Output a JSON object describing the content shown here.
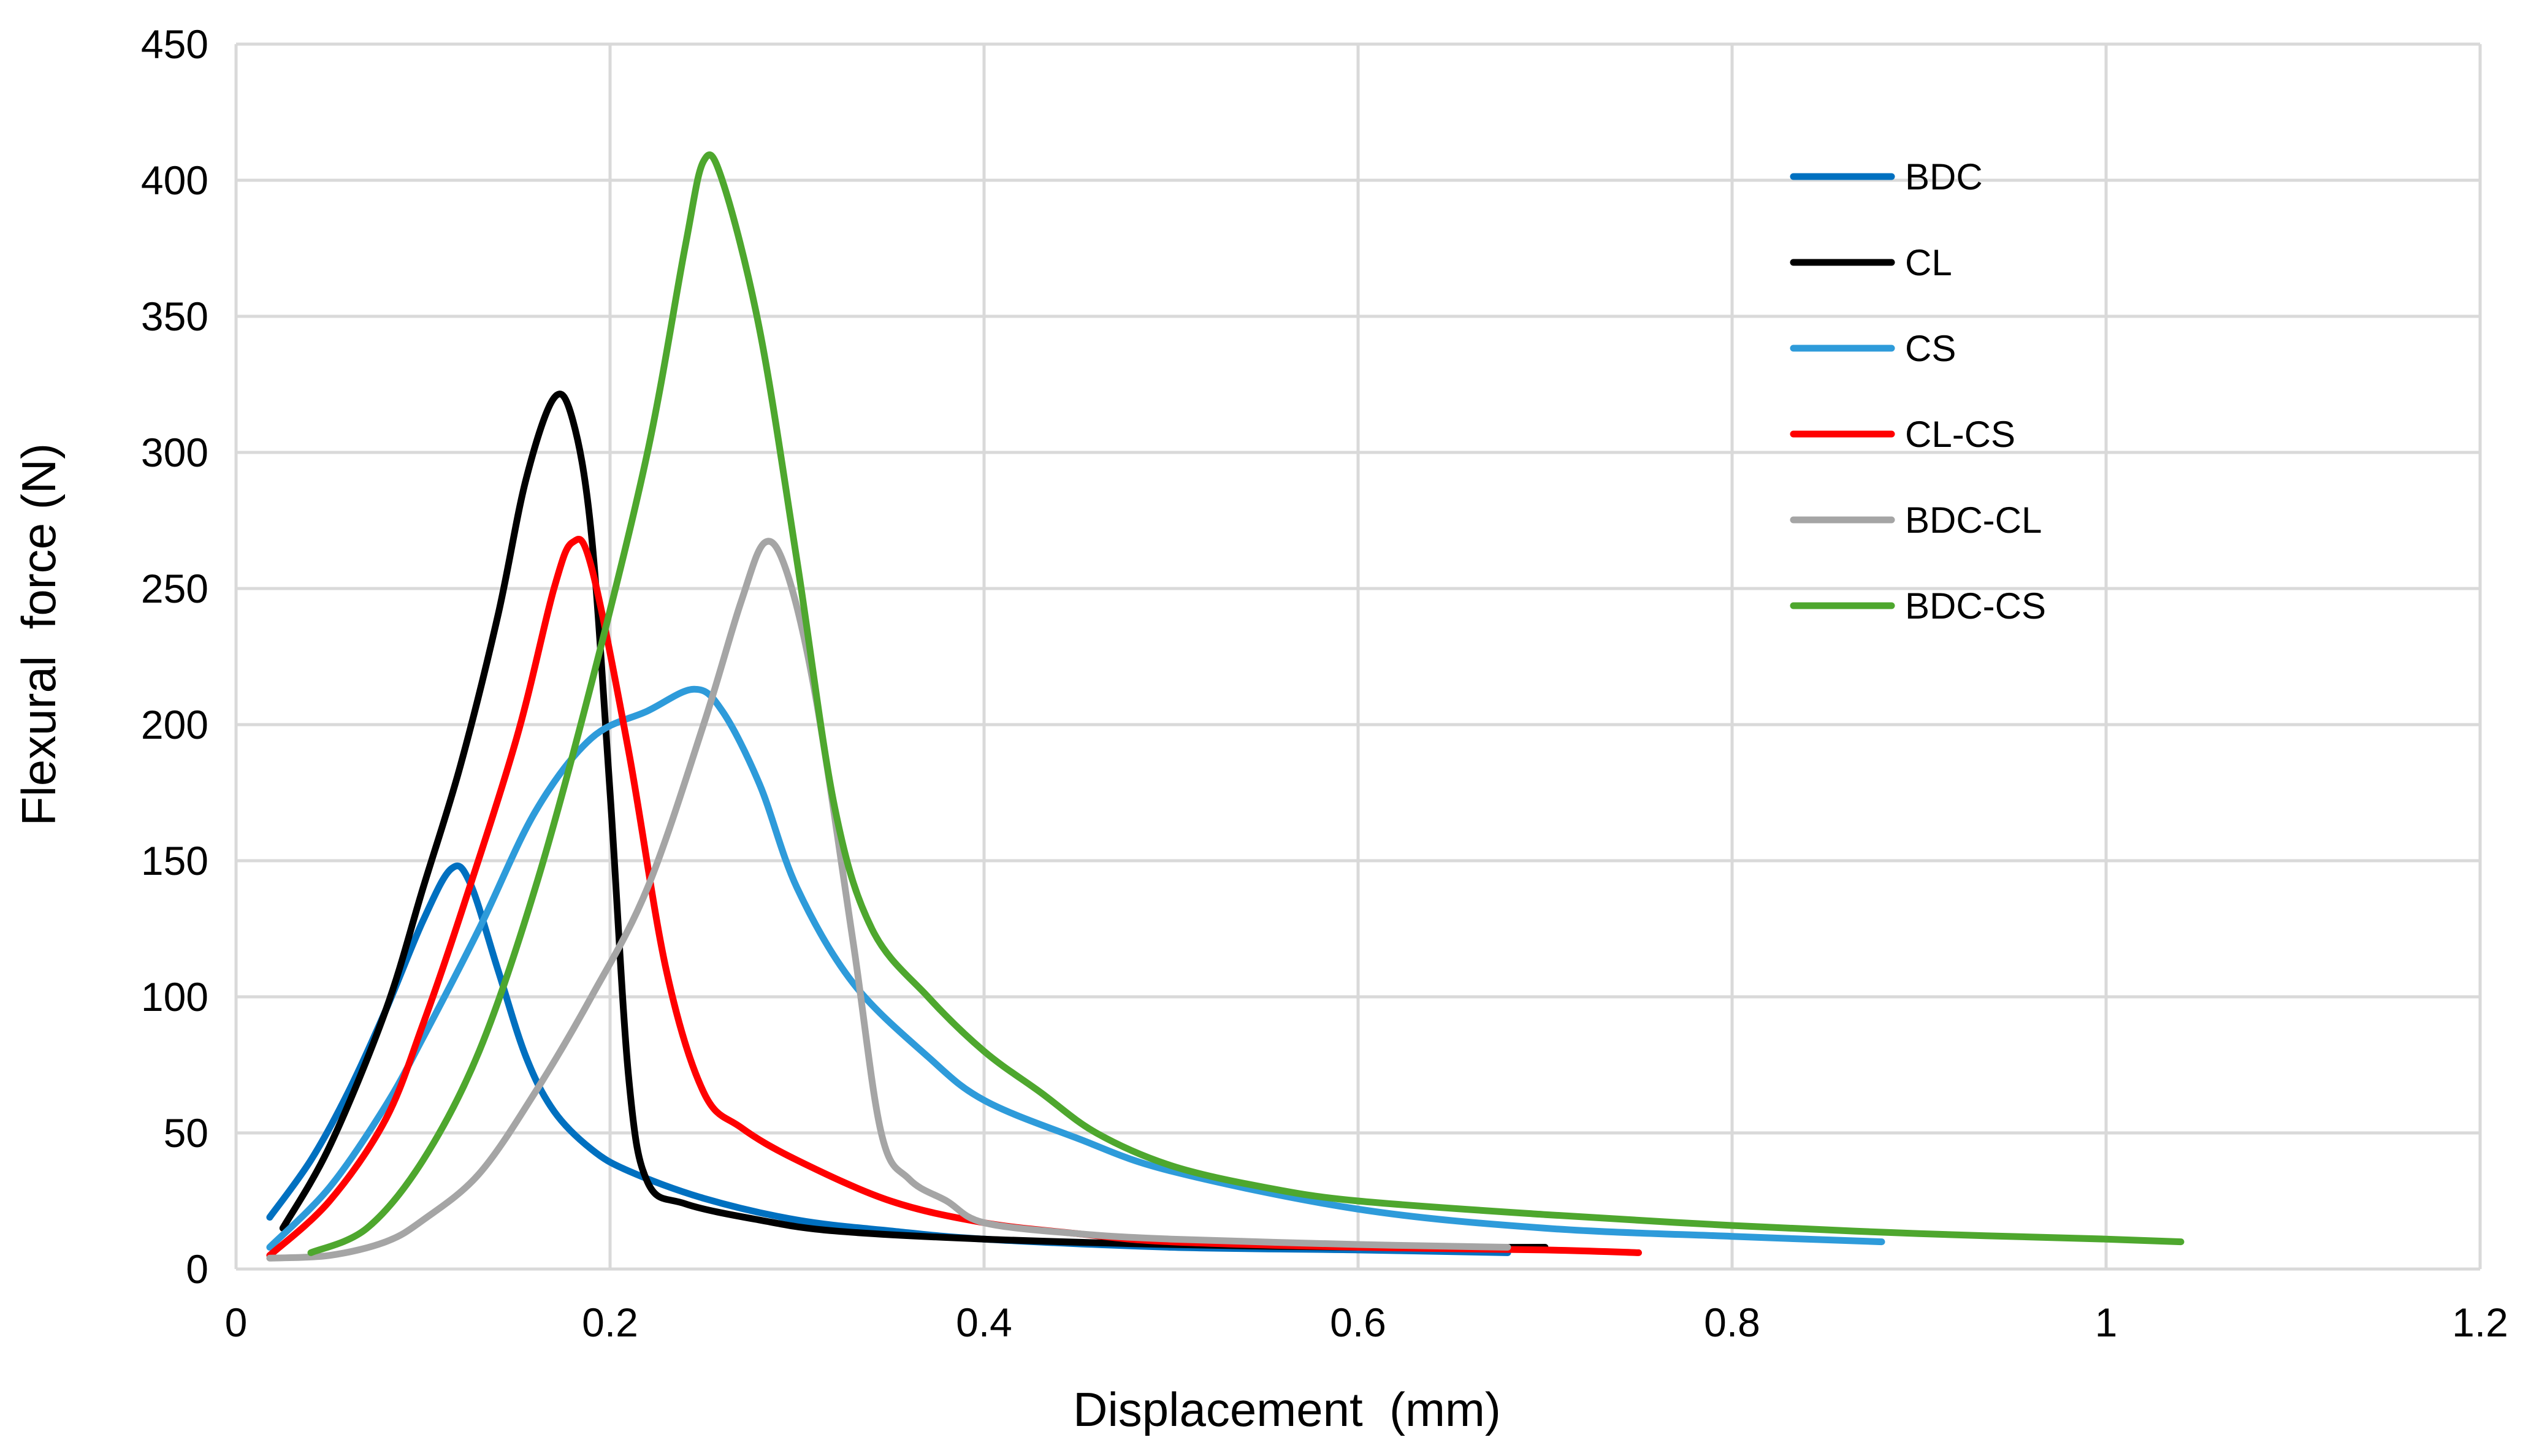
{
  "chart_data": {
    "type": "line",
    "title": "",
    "xlabel": "Displacement  (mm)",
    "ylabel": "Flexural  force (N)",
    "xlim": [
      0,
      1.2
    ],
    "ylim": [
      0,
      450
    ],
    "xticks": [
      0,
      0.2,
      0.4,
      0.6,
      0.8,
      1,
      1.2
    ],
    "xtick_labels": [
      "0",
      "0.2",
      "0.4",
      "0.6",
      "0.8",
      "1",
      "1.2"
    ],
    "yticks": [
      0,
      50,
      100,
      150,
      200,
      250,
      300,
      350,
      400,
      450
    ],
    "ytick_labels": [
      "0",
      "50",
      "100",
      "150",
      "200",
      "250",
      "300",
      "350",
      "400",
      "450"
    ],
    "grid": true,
    "legend_position": "top-right",
    "series": [
      {
        "name": "BDC",
        "color": "#0070C0",
        "points": [
          [
            0.018,
            19
          ],
          [
            0.04,
            40
          ],
          [
            0.06,
            65
          ],
          [
            0.08,
            95
          ],
          [
            0.1,
            128
          ],
          [
            0.115,
            147
          ],
          [
            0.125,
            142
          ],
          [
            0.14,
            110
          ],
          [
            0.155,
            78
          ],
          [
            0.17,
            58
          ],
          [
            0.19,
            44
          ],
          [
            0.21,
            36
          ],
          [
            0.25,
            26
          ],
          [
            0.3,
            18
          ],
          [
            0.35,
            14
          ],
          [
            0.4,
            11
          ],
          [
            0.5,
            8
          ],
          [
            0.6,
            7
          ],
          [
            0.68,
            6
          ]
        ]
      },
      {
        "name": "CL",
        "color": "#000000",
        "points": [
          [
            0.025,
            15
          ],
          [
            0.05,
            45
          ],
          [
            0.08,
            95
          ],
          [
            0.1,
            140
          ],
          [
            0.12,
            185
          ],
          [
            0.14,
            240
          ],
          [
            0.155,
            290
          ],
          [
            0.17,
            320
          ],
          [
            0.18,
            312
          ],
          [
            0.19,
            270
          ],
          [
            0.2,
            175
          ],
          [
            0.21,
            70
          ],
          [
            0.22,
            32
          ],
          [
            0.24,
            24
          ],
          [
            0.28,
            18
          ],
          [
            0.32,
            14
          ],
          [
            0.4,
            11
          ],
          [
            0.5,
            9
          ],
          [
            0.6,
            8
          ],
          [
            0.7,
            8
          ]
        ]
      },
      {
        "name": "CS",
        "color": "#2E9BDA",
        "points": [
          [
            0.018,
            8
          ],
          [
            0.05,
            30
          ],
          [
            0.08,
            60
          ],
          [
            0.1,
            85
          ],
          [
            0.13,
            125
          ],
          [
            0.16,
            168
          ],
          [
            0.19,
            195
          ],
          [
            0.22,
            205
          ],
          [
            0.245,
            213
          ],
          [
            0.26,
            205
          ],
          [
            0.28,
            178
          ],
          [
            0.3,
            140
          ],
          [
            0.33,
            105
          ],
          [
            0.37,
            78
          ],
          [
            0.4,
            62
          ],
          [
            0.45,
            48
          ],
          [
            0.5,
            36
          ],
          [
            0.6,
            22
          ],
          [
            0.7,
            15
          ],
          [
            0.8,
            12
          ],
          [
            0.88,
            10
          ]
        ]
      },
      {
        "name": "CL-CS",
        "color": "#FF0000",
        "points": [
          [
            0.018,
            5
          ],
          [
            0.05,
            25
          ],
          [
            0.08,
            55
          ],
          [
            0.1,
            90
          ],
          [
            0.12,
            130
          ],
          [
            0.15,
            195
          ],
          [
            0.17,
            250
          ],
          [
            0.18,
            267
          ],
          [
            0.19,
            258
          ],
          [
            0.21,
            190
          ],
          [
            0.23,
            110
          ],
          [
            0.25,
            65
          ],
          [
            0.27,
            52
          ],
          [
            0.3,
            40
          ],
          [
            0.35,
            25
          ],
          [
            0.4,
            17
          ],
          [
            0.45,
            13
          ],
          [
            0.5,
            10
          ],
          [
            0.6,
            8
          ],
          [
            0.7,
            7
          ],
          [
            0.75,
            6
          ]
        ]
      },
      {
        "name": "BDC-CL",
        "color": "#A5A5A5",
        "points": [
          [
            0.018,
            4
          ],
          [
            0.05,
            5
          ],
          [
            0.08,
            10
          ],
          [
            0.1,
            18
          ],
          [
            0.13,
            35
          ],
          [
            0.16,
            65
          ],
          [
            0.19,
            100
          ],
          [
            0.22,
            140
          ],
          [
            0.25,
            200
          ],
          [
            0.27,
            245
          ],
          [
            0.283,
            267
          ],
          [
            0.295,
            255
          ],
          [
            0.31,
            210
          ],
          [
            0.33,
            120
          ],
          [
            0.345,
            50
          ],
          [
            0.36,
            33
          ],
          [
            0.38,
            25
          ],
          [
            0.4,
            17
          ],
          [
            0.45,
            13
          ],
          [
            0.5,
            11
          ],
          [
            0.6,
            9
          ],
          [
            0.68,
            8
          ]
        ]
      },
      {
        "name": "BDC-CS",
        "color": "#4EA72E",
        "points": [
          [
            0.04,
            6
          ],
          [
            0.07,
            15
          ],
          [
            0.1,
            40
          ],
          [
            0.13,
            80
          ],
          [
            0.16,
            140
          ],
          [
            0.19,
            215
          ],
          [
            0.22,
            300
          ],
          [
            0.24,
            375
          ],
          [
            0.25,
            407
          ],
          [
            0.26,
            400
          ],
          [
            0.28,
            345
          ],
          [
            0.3,
            260
          ],
          [
            0.32,
            170
          ],
          [
            0.34,
            125
          ],
          [
            0.37,
            100
          ],
          [
            0.4,
            80
          ],
          [
            0.43,
            65
          ],
          [
            0.46,
            50
          ],
          [
            0.5,
            38
          ],
          [
            0.55,
            30
          ],
          [
            0.6,
            25
          ],
          [
            0.7,
            20
          ],
          [
            0.8,
            16
          ],
          [
            0.9,
            13
          ],
          [
            1.0,
            11
          ],
          [
            1.04,
            10
          ]
        ]
      }
    ]
  }
}
